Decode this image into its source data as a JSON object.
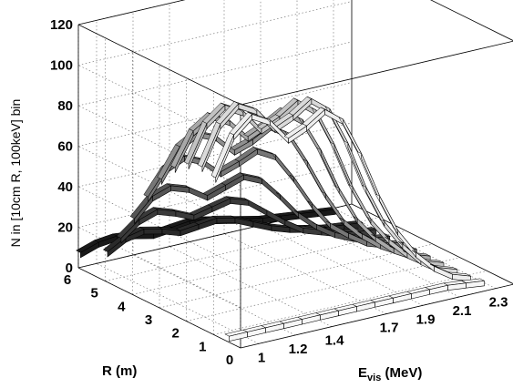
{
  "chart_data": {
    "type": "3d-ribbon",
    "title": "",
    "ylabel": "N in [10cm R, 100keV] bin",
    "xlabel": "E",
    "xlabel_sub": "vis",
    "xlabel_unit": " (MeV)",
    "rlabel": "R (m)",
    "z_ticks": [
      "0",
      "20",
      "40",
      "60",
      "80",
      "100",
      "120"
    ],
    "x_ticks": [
      "1",
      "1.2",
      "1.4",
      "1.7",
      "1.9",
      "2.1",
      "2.3"
    ],
    "r_ticks": [
      "0",
      "1",
      "2",
      "3",
      "4",
      "5",
      "6"
    ],
    "zlim": [
      0,
      120
    ],
    "xlim": [
      0.9,
      2.4
    ],
    "rlim": [
      0,
      6
    ],
    "grid": true,
    "energy_points": [
      0.9,
      1.0,
      1.1,
      1.2,
      1.3,
      1.4,
      1.5,
      1.6,
      1.7,
      1.8,
      1.9,
      2.0,
      2.1,
      2.2,
      2.3
    ],
    "series": [
      {
        "r": 6.0,
        "color": "#1a1a1a",
        "values": [
          8,
          11,
          12,
          11,
          9,
          10,
          11,
          10,
          8,
          6,
          4,
          3,
          2,
          1,
          0
        ]
      },
      {
        "r": 5.0,
        "color": "#2a2a2a",
        "values": [
          15,
          20,
          22,
          20,
          17,
          18,
          19,
          17,
          13,
          9,
          6,
          4,
          2,
          1,
          0
        ]
      },
      {
        "r": 4.5,
        "color": "#3a3a3a",
        "values": [
          25,
          32,
          35,
          32,
          28,
          30,
          32,
          29,
          22,
          15,
          9,
          6,
          3,
          1,
          0
        ]
      },
      {
        "r": 4.0,
        "color": "#555555",
        "values": [
          38,
          47,
          50,
          47,
          41,
          44,
          47,
          43,
          33,
          22,
          14,
          8,
          4,
          1,
          0
        ]
      },
      {
        "r": 3.5,
        "color": "#777777",
        "values": [
          52,
          64,
          68,
          64,
          56,
          59,
          63,
          58,
          45,
          30,
          18,
          11,
          5,
          2,
          0
        ]
      },
      {
        "r": 3.0,
        "color": "#8f8f8f",
        "values": [
          64,
          78,
          83,
          79,
          70,
          73,
          78,
          72,
          56,
          38,
          23,
          14,
          7,
          2,
          0
        ]
      },
      {
        "r": 2.5,
        "color": "#a8a8a8",
        "values": [
          73,
          89,
          95,
          90,
          80,
          84,
          89,
          82,
          65,
          44,
          27,
          16,
          8,
          3,
          0
        ]
      },
      {
        "r": 2.0,
        "color": "#c2c2c2",
        "values": [
          78,
          96,
          103,
          98,
          87,
          91,
          97,
          90,
          71,
          48,
          30,
          18,
          9,
          3,
          0
        ]
      },
      {
        "r": 1.5,
        "color": "#dadada",
        "values": [
          80,
          99,
          107,
          102,
          91,
          95,
          101,
          94,
          75,
          51,
          32,
          19,
          9,
          3,
          0
        ]
      },
      {
        "r": 1.0,
        "color": "#eeeeee",
        "values": [
          78,
          97,
          105,
          100,
          89,
          93,
          99,
          92,
          73,
          50,
          31,
          18,
          9,
          3,
          0
        ]
      },
      {
        "r": 0.5,
        "color": "#f7f7f7",
        "values": [
          3,
          3,
          3,
          3,
          3,
          3,
          3,
          3,
          3,
          3,
          3,
          3,
          3,
          2,
          1
        ]
      }
    ]
  }
}
